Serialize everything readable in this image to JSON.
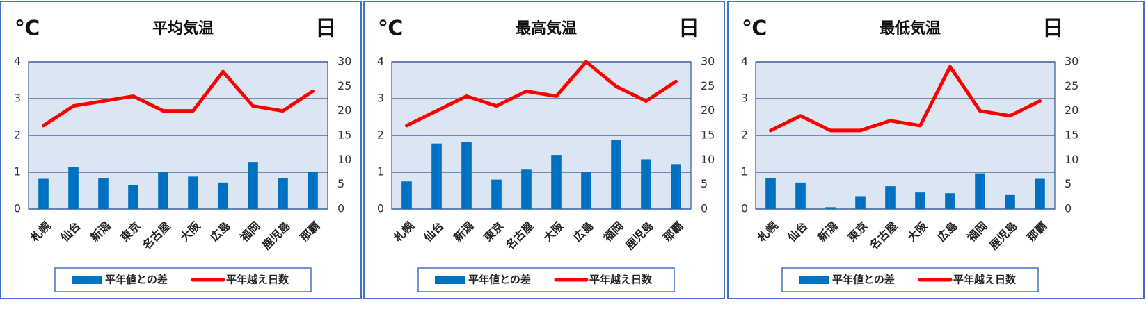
{
  "chart_data": [
    {
      "type": "combo",
      "title": "平均気温",
      "ylabel": "℃",
      "y2label": "日",
      "categories": [
        "札幌",
        "仙台",
        "新潟",
        "東京",
        "名古屋",
        "大阪",
        "広島",
        "福岡",
        "鹿児島",
        "那覇"
      ],
      "series": [
        {
          "name": "平年値との差",
          "type": "bar",
          "color": "#0070c0",
          "values": [
            0.82,
            1.15,
            0.83,
            0.65,
            1.0,
            0.88,
            0.72,
            1.28,
            0.83,
            1.02
          ]
        },
        {
          "name": "平年越え日数",
          "type": "line",
          "axis": "y2",
          "color": "#ff0000",
          "values": [
            17,
            21,
            22,
            23,
            20,
            20,
            28,
            21,
            20,
            24
          ]
        }
      ],
      "ylim": [
        0,
        4
      ],
      "yticks": [
        0,
        1,
        2,
        3,
        4
      ],
      "y2lim": [
        0,
        30
      ],
      "y2ticks": [
        0,
        5,
        10,
        15,
        20,
        25,
        30
      ],
      "grid": true
    },
    {
      "type": "combo",
      "title": "最高気温",
      "ylabel": "℃",
      "y2label": "日",
      "categories": [
        "札幌",
        "仙台",
        "新潟",
        "東京",
        "名古屋",
        "大阪",
        "広島",
        "福岡",
        "鹿児島",
        "那覇"
      ],
      "series": [
        {
          "name": "平年値との差",
          "type": "bar",
          "color": "#0070c0",
          "values": [
            0.75,
            1.78,
            1.82,
            0.8,
            1.07,
            1.47,
            1.0,
            1.88,
            1.35,
            1.22
          ]
        },
        {
          "name": "平年越え日数",
          "type": "line",
          "axis": "y2",
          "color": "#ff0000",
          "values": [
            17,
            20,
            23,
            21,
            24,
            23,
            30,
            25,
            22,
            26
          ]
        }
      ],
      "ylim": [
        0,
        4
      ],
      "yticks": [
        0,
        1,
        2,
        3,
        4
      ],
      "y2lim": [
        0,
        30
      ],
      "y2ticks": [
        0,
        5,
        10,
        15,
        20,
        25,
        30
      ],
      "grid": true
    },
    {
      "type": "combo",
      "title": "最低気温",
      "ylabel": "℃",
      "y2label": "日",
      "categories": [
        "札幌",
        "仙台",
        "新潟",
        "東京",
        "名古屋",
        "大阪",
        "広島",
        "福岡",
        "鹿児島",
        "那覇"
      ],
      "series": [
        {
          "name": "平年値との差",
          "type": "bar",
          "color": "#0070c0",
          "values": [
            0.83,
            0.72,
            0.05,
            0.35,
            0.62,
            0.45,
            0.43,
            0.97,
            0.38,
            0.82
          ]
        },
        {
          "name": "平年越え日数",
          "type": "line",
          "axis": "y2",
          "color": "#ff0000",
          "values": [
            16,
            19,
            16,
            16,
            18,
            17,
            29,
            20,
            19,
            22
          ]
        }
      ],
      "ylim": [
        0,
        4
      ],
      "yticks": [
        0,
        1,
        2,
        3,
        4
      ],
      "y2lim": [
        0,
        30
      ],
      "y2ticks": [
        0,
        5,
        10,
        15,
        20,
        25,
        30
      ],
      "grid": true
    }
  ]
}
